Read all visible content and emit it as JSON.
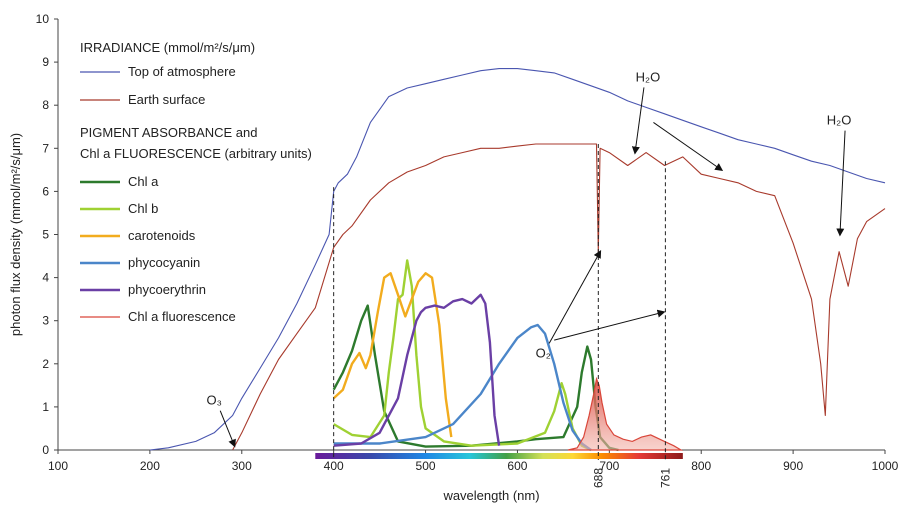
{
  "chart_data": {
    "type": "line",
    "xlabel": "wavelength (nm)",
    "ylabel": "photon flux density (mmol/m²/s/μm)",
    "xlim": [
      100,
      1000
    ],
    "ylim": [
      0,
      10
    ],
    "xticks": [
      100,
      200,
      300,
      400,
      500,
      600,
      700,
      800,
      900,
      1000
    ],
    "yticks": [
      0,
      1,
      2,
      3,
      4,
      5,
      6,
      7,
      8,
      9,
      10
    ],
    "grid": false,
    "legend_position": "top-left",
    "legend_heading_1": "IRRADIANCE (mmol/m²/s/μm)",
    "legend_heading_2a": "PIGMENT ABSORBANCE and",
    "legend_heading_2b": "Chl a FLUORESCENCE (arbitrary units)",
    "series": [
      {
        "name": "Top of atmosphere",
        "color": "#4a56b0",
        "group": "irradiance",
        "x": [
          200,
          220,
          250,
          270,
          290,
          300,
          320,
          340,
          360,
          380,
          395,
          400,
          405,
          415,
          425,
          440,
          460,
          480,
          500,
          520,
          540,
          560,
          580,
          600,
          620,
          640,
          660,
          680,
          700,
          720,
          740,
          760,
          780,
          800,
          820,
          840,
          860,
          880,
          900,
          920,
          940,
          960,
          980,
          1000
        ],
        "y": [
          0,
          0.05,
          0.2,
          0.4,
          0.8,
          1.2,
          1.9,
          2.6,
          3.4,
          4.3,
          5.0,
          6.0,
          6.2,
          6.4,
          6.8,
          7.6,
          8.2,
          8.4,
          8.5,
          8.6,
          8.7,
          8.8,
          8.85,
          8.85,
          8.8,
          8.75,
          8.6,
          8.45,
          8.3,
          8.1,
          7.95,
          7.8,
          7.65,
          7.5,
          7.35,
          7.2,
          7.1,
          7.0,
          6.85,
          6.7,
          6.6,
          6.45,
          6.3,
          6.2
        ]
      },
      {
        "name": "Earth surface",
        "color": "#a83a2c",
        "group": "irradiance",
        "x": [
          290,
          300,
          320,
          340,
          360,
          380,
          400,
          410,
          420,
          440,
          460,
          480,
          500,
          520,
          540,
          560,
          580,
          600,
          620,
          640,
          660,
          680,
          686,
          688,
          690,
          700,
          720,
          740,
          760,
          780,
          800,
          820,
          840,
          860,
          880,
          900,
          920,
          930,
          935,
          940,
          950,
          960,
          970,
          980,
          1000
        ],
        "y": [
          0,
          0.4,
          1.3,
          2.1,
          2.7,
          3.3,
          4.7,
          5.0,
          5.2,
          5.8,
          6.2,
          6.45,
          6.6,
          6.8,
          6.9,
          7.0,
          7.0,
          7.05,
          7.1,
          7.1,
          7.1,
          7.1,
          7.1,
          4.6,
          7.0,
          6.9,
          6.6,
          6.9,
          6.6,
          6.8,
          6.4,
          6.3,
          6.2,
          6.0,
          5.9,
          4.8,
          3.5,
          2.0,
          0.8,
          3.5,
          4.6,
          3.8,
          4.9,
          5.3,
          5.6
        ]
      },
      {
        "name": "Chl a",
        "color": "#2d7a2d",
        "group": "pigment",
        "x": [
          400,
          410,
          420,
          430,
          437,
          445,
          455,
          470,
          500,
          550,
          600,
          620,
          650,
          665,
          670,
          676,
          680,
          685,
          690,
          700,
          710
        ],
        "y": [
          1.4,
          1.8,
          2.3,
          3.0,
          3.35,
          2.2,
          0.9,
          0.2,
          0.08,
          0.1,
          0.2,
          0.25,
          0.3,
          1.0,
          1.8,
          2.4,
          2.1,
          1.0,
          0.3,
          0.05,
          0
        ]
      },
      {
        "name": "Chl b",
        "color": "#9fd133",
        "group": "pigment",
        "x": [
          400,
          420,
          440,
          455,
          460,
          465,
          470,
          475,
          480,
          485,
          490,
          495,
          500,
          520,
          550,
          600,
          630,
          640,
          648,
          652,
          660,
          670,
          680
        ],
        "y": [
          0.6,
          0.35,
          0.3,
          0.8,
          1.8,
          2.6,
          3.5,
          3.6,
          4.4,
          3.8,
          2.2,
          1.0,
          0.5,
          0.2,
          0.1,
          0.15,
          0.4,
          0.9,
          1.55,
          1.3,
          0.5,
          0.1,
          0
        ]
      },
      {
        "name": "carotenoids",
        "color": "#f2ac1e",
        "group": "pigment",
        "x": [
          400,
          410,
          420,
          428,
          435,
          440,
          448,
          455,
          462,
          470,
          478,
          485,
          492,
          500,
          507,
          515,
          522,
          528
        ],
        "y": [
          1.2,
          1.4,
          2.0,
          2.25,
          1.9,
          2.2,
          3.2,
          4.0,
          4.1,
          3.6,
          3.1,
          3.5,
          3.9,
          4.1,
          4.0,
          2.9,
          1.2,
          0.3
        ]
      },
      {
        "name": "phycocyanin",
        "color": "#4b86c9",
        "group": "pigment",
        "x": [
          400,
          450,
          500,
          530,
          560,
          580,
          600,
          615,
          622,
          630,
          640,
          650,
          660,
          670,
          680
        ],
        "y": [
          0.15,
          0.15,
          0.3,
          0.6,
          1.3,
          2.0,
          2.6,
          2.85,
          2.9,
          2.7,
          2.0,
          1.1,
          0.45,
          0.15,
          0
        ]
      },
      {
        "name": "phycoerythrin",
        "color": "#6a3fa5",
        "group": "pigment",
        "x": [
          400,
          430,
          450,
          470,
          480,
          490,
          495,
          500,
          510,
          520,
          530,
          540,
          550,
          555,
          560,
          565,
          570,
          575,
          580
        ],
        "y": [
          0.1,
          0.15,
          0.4,
          1.2,
          2.2,
          3.0,
          3.2,
          3.3,
          3.35,
          3.3,
          3.45,
          3.5,
          3.4,
          3.5,
          3.6,
          3.4,
          2.5,
          0.8,
          0.1
        ]
      },
      {
        "name": "Chl a fluorescence",
        "color": "#d9463a",
        "group": "fluorescence",
        "filled": true,
        "x": [
          655,
          665,
          672,
          678,
          683,
          686,
          689,
          692,
          697,
          705,
          715,
          725,
          735,
          745,
          760,
          770,
          778
        ],
        "y": [
          0,
          0.05,
          0.3,
          0.8,
          1.3,
          1.65,
          1.5,
          1.1,
          0.6,
          0.35,
          0.25,
          0.2,
          0.3,
          0.35,
          0.2,
          0.1,
          0
        ]
      }
    ],
    "vertical_markers": [
      {
        "x": 400,
        "label": ""
      },
      {
        "x": 688,
        "label": "688"
      },
      {
        "x": 761,
        "label": "761"
      }
    ],
    "annotations": [
      {
        "label": "O₃",
        "text_x": 270,
        "text_y": 1.05,
        "arrow_x": 292,
        "arrow_y": 0.1
      },
      {
        "label": "H₂O",
        "text_x": 742,
        "text_y": 8.55,
        "arrow_x": 728,
        "arrow_y": 6.9
      },
      {
        "label": "H₂O",
        "text_x": 950,
        "text_y": 7.55,
        "arrow_x": 951,
        "arrow_y": 5.0
      },
      {
        "label": "O₂",
        "text_x": 628,
        "text_y": 2.15,
        "arrow_x": 690,
        "arrow_y": 4.6
      }
    ],
    "spectrum_bar": {
      "from": 380,
      "to": 780
    }
  }
}
